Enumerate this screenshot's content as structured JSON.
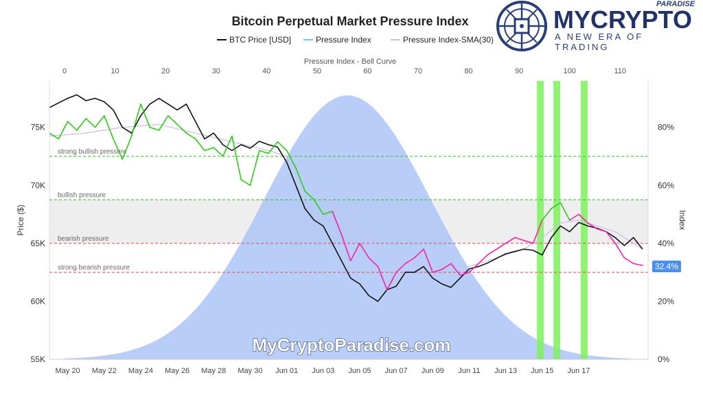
{
  "chart_data": {
    "type": "line",
    "title": "Bitcoin Perpetual Market Pressure Index",
    "legend": {
      "placement": "top",
      "items": [
        {
          "label": "BTC Price [USD]",
          "color": "#111111"
        },
        {
          "label": "Pressure Index",
          "color": "#6ec7ee"
        },
        {
          "label": "Pressure Index-SMA(30)",
          "color": "#c9c3e6"
        }
      ]
    },
    "top_axis": {
      "label": "Pressure Index - Bell Curve",
      "range": [
        0,
        112
      ],
      "ticks": [
        0,
        10,
        20,
        30,
        40,
        50,
        60,
        70,
        80,
        90,
        100,
        110
      ]
    },
    "x_axis": {
      "range_days": [
        0,
        29.5
      ],
      "tick_labels": [
        "May 20",
        "May 22",
        "May 24",
        "May 26",
        "May 28",
        "May 30",
        "Jun 01",
        "Jun 03",
        "Jun 05",
        "Jun 07",
        "Jun 09",
        "Jun 11",
        "Jun 13",
        "Jun 15",
        "Jun 17"
      ]
    },
    "left_axis": {
      "label": "Price ($)",
      "range": [
        55000,
        79000
      ],
      "ticks": [
        55000,
        60000,
        65000,
        70000,
        75000
      ],
      "tick_labels": [
        "55K",
        "60K",
        "65K",
        "70K",
        "75K"
      ]
    },
    "right_axis": {
      "label": "Index",
      "range": [
        0,
        96
      ],
      "ticks": [
        0,
        20,
        40,
        60,
        80
      ],
      "tick_labels": [
        "0%",
        "20%",
        "40%",
        "60%",
        "80%"
      ]
    },
    "current_value_label": "32.4%",
    "zones": [
      {
        "label": "strong bullish pressure",
        "value": 70,
        "color": "#22c21d"
      },
      {
        "label": "bullish pressure",
        "value": 55,
        "color": "#22c21d"
      },
      {
        "label": "bearish pressure",
        "value": 40,
        "color": "#e8434a"
      },
      {
        "label": "strong bearish pressure",
        "value": 30,
        "color": "#e8434a"
      }
    ],
    "neutral_band": [
      40,
      55
    ],
    "bell_curve": {
      "mean": 56,
      "sd": 16.5,
      "peak_index": 91,
      "color": "#a7c0f8"
    },
    "highlight_days": [
      26.9,
      27.8,
      29.3
    ],
    "btc_price": [
      [
        0,
        76700
      ],
      [
        0.5,
        77100
      ],
      [
        1,
        77500
      ],
      [
        1.5,
        77800
      ],
      [
        2,
        77300
      ],
      [
        2.5,
        77500
      ],
      [
        3,
        77200
      ],
      [
        3.5,
        76500
      ],
      [
        4,
        75000
      ],
      [
        4.5,
        74500
      ],
      [
        5,
        76000
      ],
      [
        5.5,
        77000
      ],
      [
        6,
        77500
      ],
      [
        6.5,
        77000
      ],
      [
        7,
        76500
      ],
      [
        7.5,
        77000
      ],
      [
        8,
        75500
      ],
      [
        8.5,
        74000
      ],
      [
        9,
        74500
      ],
      [
        9.5,
        73500
      ],
      [
        10,
        73000
      ],
      [
        10.5,
        73500
      ],
      [
        11,
        73200
      ],
      [
        11.5,
        73800
      ],
      [
        12,
        73500
      ],
      [
        12.5,
        73300
      ],
      [
        13,
        72000
      ],
      [
        13.5,
        70000
      ],
      [
        14,
        68000
      ],
      [
        14.5,
        67000
      ],
      [
        15,
        66500
      ],
      [
        15.5,
        65000
      ],
      [
        16,
        63500
      ],
      [
        16.5,
        62000
      ],
      [
        17,
        61500
      ],
      [
        17.5,
        60500
      ],
      [
        18,
        60000
      ],
      [
        18.5,
        61000
      ],
      [
        19,
        61300
      ],
      [
        19.5,
        62500
      ],
      [
        20,
        62500
      ],
      [
        20.5,
        63000
      ],
      [
        21,
        62000
      ],
      [
        21.5,
        61500
      ],
      [
        22,
        61200
      ],
      [
        22.5,
        62000
      ],
      [
        23,
        62800
      ],
      [
        23.5,
        63000
      ],
      [
        24,
        63300
      ],
      [
        24.5,
        63700
      ],
      [
        25,
        64100
      ],
      [
        25.5,
        64300
      ],
      [
        26,
        64500
      ],
      [
        26.5,
        64400
      ],
      [
        27,
        64000
      ],
      [
        27.5,
        65500
      ],
      [
        28,
        66500
      ],
      [
        28.5,
        66000
      ],
      [
        29,
        66800
      ],
      [
        29.5,
        66500
      ],
      [
        30,
        66300
      ],
      [
        30.5,
        66000
      ],
      [
        31,
        65500
      ],
      [
        31.5,
        64800
      ],
      [
        32,
        65500
      ],
      [
        32.5,
        64500
      ]
    ],
    "pressure_index": [
      [
        0,
        78
      ],
      [
        0.5,
        76
      ],
      [
        1,
        82
      ],
      [
        1.5,
        79
      ],
      [
        2,
        83
      ],
      [
        2.5,
        80
      ],
      [
        3,
        84
      ],
      [
        3.5,
        76
      ],
      [
        4,
        69
      ],
      [
        4.5,
        77
      ],
      [
        5,
        88
      ],
      [
        5.5,
        80
      ],
      [
        6,
        79
      ],
      [
        6.5,
        84
      ],
      [
        7,
        81
      ],
      [
        7.5,
        78
      ],
      [
        8,
        76
      ],
      [
        8.5,
        72
      ],
      [
        9,
        73
      ],
      [
        9.5,
        70
      ],
      [
        10,
        77
      ],
      [
        10.5,
        62
      ],
      [
        11,
        60
      ],
      [
        11.5,
        72
      ],
      [
        12,
        71
      ],
      [
        12.5,
        75
      ],
      [
        13,
        72
      ],
      [
        13.5,
        66
      ],
      [
        14,
        58
      ],
      [
        14.5,
        55
      ],
      [
        15,
        50
      ],
      [
        15.5,
        51
      ],
      [
        16,
        43
      ],
      [
        16.5,
        34
      ],
      [
        17,
        40
      ],
      [
        17.5,
        35
      ],
      [
        18,
        32
      ],
      [
        18.5,
        24
      ],
      [
        19,
        30
      ],
      [
        19.5,
        33
      ],
      [
        20,
        35
      ],
      [
        20.5,
        38
      ],
      [
        21,
        30
      ],
      [
        21.5,
        31
      ],
      [
        22,
        33
      ],
      [
        22.5,
        29
      ],
      [
        23,
        30
      ],
      [
        23.5,
        33
      ],
      [
        24,
        36
      ],
      [
        24.5,
        38
      ],
      [
        25,
        40
      ],
      [
        25.5,
        42
      ],
      [
        26,
        41
      ],
      [
        26.5,
        40
      ],
      [
        27,
        48
      ],
      [
        27.5,
        52
      ],
      [
        28,
        54
      ],
      [
        28.5,
        48
      ],
      [
        29,
        50
      ],
      [
        29.5,
        47
      ],
      [
        30,
        45
      ],
      [
        30.5,
        44
      ],
      [
        31,
        40
      ],
      [
        31.5,
        35
      ],
      [
        32,
        33
      ],
      [
        32.5,
        32.4
      ]
    ],
    "pressure_sma30": [
      [
        0,
        77
      ],
      [
        2,
        78
      ],
      [
        4,
        80
      ],
      [
        6,
        81
      ],
      [
        8,
        78
      ],
      [
        10,
        75
      ],
      [
        12,
        72
      ],
      [
        13,
        70
      ],
      [
        14,
        63
      ],
      [
        15,
        57
      ],
      [
        16,
        50
      ],
      [
        17,
        44
      ],
      [
        18,
        38
      ],
      [
        19,
        34
      ],
      [
        20,
        33
      ],
      [
        21,
        32
      ],
      [
        22,
        32
      ],
      [
        23,
        32
      ],
      [
        24,
        34
      ],
      [
        25,
        36
      ],
      [
        26,
        38
      ],
      [
        27,
        42
      ],
      [
        28,
        47
      ],
      [
        29,
        48
      ],
      [
        30,
        46
      ],
      [
        31,
        44
      ],
      [
        32,
        40
      ],
      [
        32.5,
        38
      ]
    ],
    "ylabel": "Price ($)"
  },
  "watermark": "MyCryptoParadise.com",
  "logo": {
    "wordmark": "MYCRYPTO",
    "tagline": "A NEW ERA OF TRADING",
    "top_text": "PARADISE"
  },
  "colors": {
    "bullish_line": "#2ecc18",
    "bearish_line": "#ff1ea8",
    "highlight": "#7cf25b",
    "band": "#eeeeee",
    "price": "#111111"
  }
}
